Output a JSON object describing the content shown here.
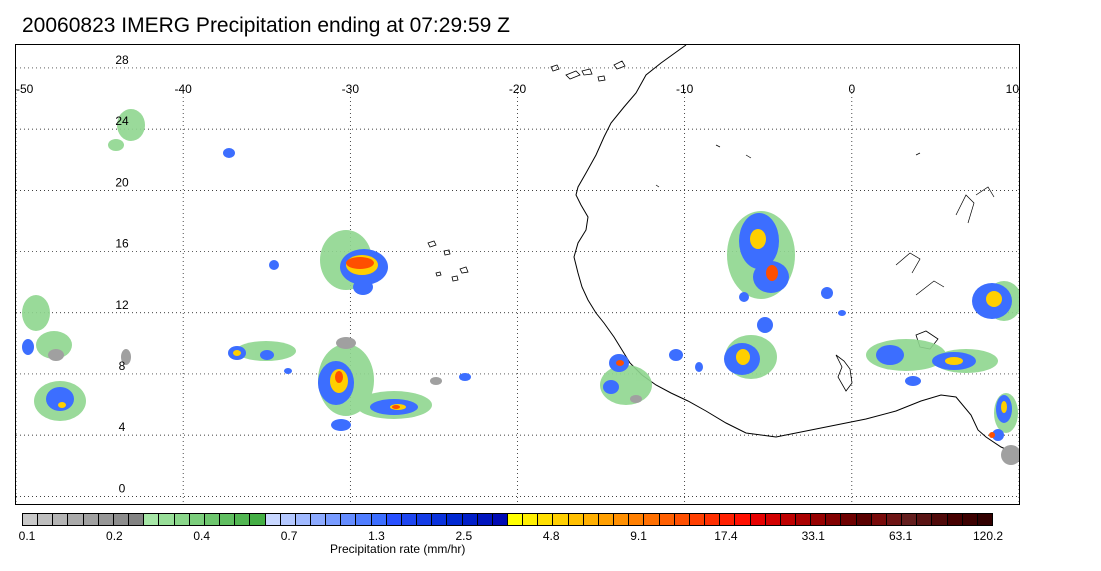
{
  "title": "20060823 IMERG Precipitation ending at 07:29:59 Z",
  "map": {
    "lon_range": [
      -50,
      10
    ],
    "lat_range": [
      -0.5,
      29.5
    ],
    "lon_ticks": [
      "-50",
      "-40",
      "-30",
      "-20",
      "-10",
      "0",
      "10"
    ],
    "lat_ticks": [
      "28",
      "24",
      "20",
      "16",
      "12",
      "8",
      "4",
      "0"
    ],
    "grid": true,
    "gridline_style": "dotted",
    "coastline": "West Africa"
  },
  "colorbar": {
    "label": "Precipitation rate (mm/hr)",
    "tick_labels": [
      "0.1",
      "0.2",
      "0.4",
      "0.7",
      "1.3",
      "2.5",
      "4.8",
      "9.1",
      "17.4",
      "33.1",
      "63.1",
      "120.2"
    ],
    "colors": [
      "#c8c8c8",
      "#bebebe",
      "#b4b4b4",
      "#aaaaaa",
      "#a0a0a0",
      "#969696",
      "#8c8c8c",
      "#828282",
      "#a6e6a6",
      "#98de98",
      "#8ad68a",
      "#7cce7c",
      "#6ec66e",
      "#60be60",
      "#52b652",
      "#44ae44",
      "#c8d7ff",
      "#b4c8ff",
      "#a0b9ff",
      "#8caaff",
      "#789bff",
      "#648cff",
      "#507dff",
      "#3c6eff",
      "#2850ff",
      "#1e46f0",
      "#143ce6",
      "#0a32dc",
      "#0028d2",
      "#001ec8",
      "#0014be",
      "#000ab4",
      "#ffff00",
      "#ffef00",
      "#ffdf00",
      "#ffcf00",
      "#ffbf00",
      "#ffaf00",
      "#ff9f00",
      "#ff8f00",
      "#ff7f00",
      "#ff6f00",
      "#ff5f00",
      "#ff4f00",
      "#ff3f00",
      "#ff2f00",
      "#ff1f00",
      "#ff0f00",
      "#e60000",
      "#d20000",
      "#be0000",
      "#aa0000",
      "#960000",
      "#820000",
      "#6e0000",
      "#5a0000",
      "#780a0a",
      "#6e1414",
      "#641e1e",
      "#5a1414",
      "#500a0a",
      "#460000",
      "#3c0000",
      "#320000"
    ]
  }
}
